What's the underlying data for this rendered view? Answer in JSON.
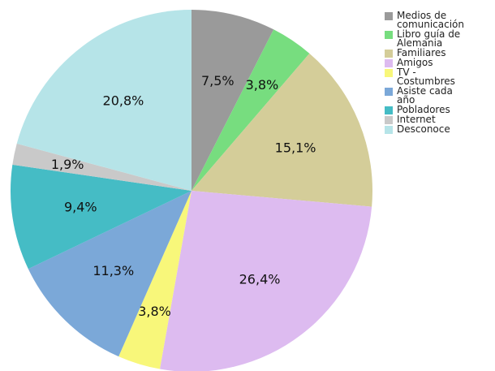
{
  "chart_data": {
    "type": "pie",
    "labels": [
      "Medios de comunicación",
      "Libro guía de Alemania",
      "Familiares",
      "Amigos",
      "TV - Costumbres",
      "Asiste cada año",
      "Pobladores",
      "Internet",
      "Desconoce"
    ],
    "values": [
      7.5,
      3.8,
      15.1,
      26.4,
      3.8,
      11.3,
      9.4,
      1.9,
      20.8
    ],
    "value_labels": [
      "7,5%",
      "3,8%",
      "15,1%",
      "26,4%",
      "3,8%",
      "11,3%",
      "9,4%",
      "1,9%",
      "20,8%"
    ],
    "colors": [
      "#9a9a9a",
      "#77dd7f",
      "#d4cd99",
      "#ddbbf0",
      "#f8f77a",
      "#7ba8d8",
      "#45bcc5",
      "#c9c9c9",
      "#b6e4e8"
    ]
  }
}
